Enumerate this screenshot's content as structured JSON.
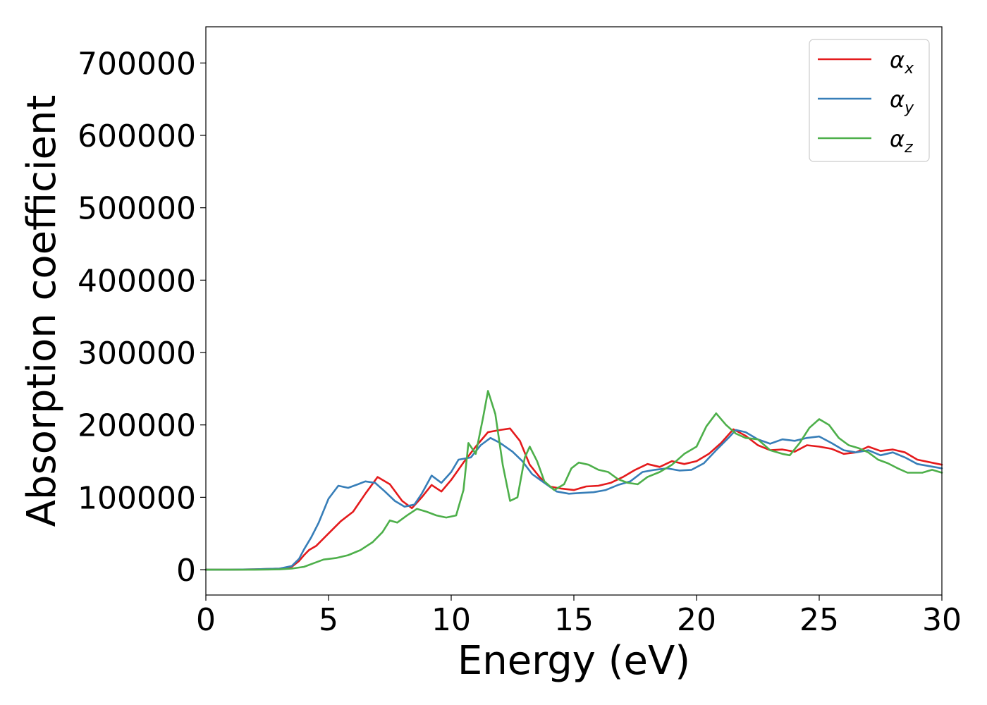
{
  "chart_data": {
    "type": "line",
    "title": "",
    "xlabel": "Energy (eV)",
    "ylabel": "Absorption coefficient",
    "xlim": [
      0,
      30
    ],
    "ylim": [
      -35000,
      750000
    ],
    "xticks": [
      0,
      5,
      10,
      15,
      20,
      25,
      30
    ],
    "yticks": [
      0,
      100000,
      200000,
      300000,
      400000,
      500000,
      600000,
      700000
    ],
    "grid": false,
    "legend_position": "top-right",
    "series": [
      {
        "name": "α",
        "subscript": "x",
        "color": "#e41a1c",
        "points": [
          [
            0,
            0
          ],
          [
            1,
            0
          ],
          [
            2,
            500
          ],
          [
            3,
            1500
          ],
          [
            3.5,
            4000
          ],
          [
            3.8,
            12000
          ],
          [
            4.0,
            20000
          ],
          [
            4.2,
            27000
          ],
          [
            4.5,
            33000
          ],
          [
            5.0,
            50000
          ],
          [
            5.5,
            67000
          ],
          [
            6.0,
            80000
          ],
          [
            6.5,
            105000
          ],
          [
            7.0,
            128000
          ],
          [
            7.5,
            118000
          ],
          [
            8.0,
            95000
          ],
          [
            8.4,
            85000
          ],
          [
            8.8,
            100000
          ],
          [
            9.2,
            117000
          ],
          [
            9.6,
            108000
          ],
          [
            10.0,
            124000
          ],
          [
            10.5,
            148000
          ],
          [
            11.0,
            170000
          ],
          [
            11.5,
            190000
          ],
          [
            12.0,
            193000
          ],
          [
            12.4,
            195000
          ],
          [
            12.8,
            178000
          ],
          [
            13.2,
            145000
          ],
          [
            13.6,
            128000
          ],
          [
            14.0,
            115000
          ],
          [
            14.5,
            112000
          ],
          [
            15.0,
            110000
          ],
          [
            15.5,
            115000
          ],
          [
            16.0,
            116000
          ],
          [
            16.5,
            120000
          ],
          [
            17.0,
            128000
          ],
          [
            17.5,
            138000
          ],
          [
            18.0,
            146000
          ],
          [
            18.5,
            142000
          ],
          [
            19.0,
            150000
          ],
          [
            19.5,
            146000
          ],
          [
            20.0,
            150000
          ],
          [
            20.5,
            160000
          ],
          [
            21.0,
            175000
          ],
          [
            21.5,
            194000
          ],
          [
            22.0,
            185000
          ],
          [
            22.5,
            172000
          ],
          [
            23.0,
            165000
          ],
          [
            23.5,
            166000
          ],
          [
            24.0,
            163000
          ],
          [
            24.5,
            172000
          ],
          [
            25.0,
            170000
          ],
          [
            25.5,
            167000
          ],
          [
            26.0,
            160000
          ],
          [
            26.5,
            162000
          ],
          [
            27.0,
            170000
          ],
          [
            27.5,
            164000
          ],
          [
            28.0,
            166000
          ],
          [
            28.5,
            162000
          ],
          [
            29.0,
            152000
          ],
          [
            30.0,
            145000
          ]
        ]
      },
      {
        "name": "α",
        "subscript": "y",
        "color": "#377eb8",
        "points": [
          [
            0,
            0
          ],
          [
            1,
            0
          ],
          [
            2,
            500
          ],
          [
            3,
            1500
          ],
          [
            3.5,
            5000
          ],
          [
            3.8,
            15000
          ],
          [
            4.0,
            28000
          ],
          [
            4.3,
            45000
          ],
          [
            4.6,
            65000
          ],
          [
            5.0,
            98000
          ],
          [
            5.4,
            116000
          ],
          [
            5.8,
            113000
          ],
          [
            6.2,
            118000
          ],
          [
            6.5,
            122000
          ],
          [
            6.9,
            120000
          ],
          [
            7.3,
            108000
          ],
          [
            7.7,
            95000
          ],
          [
            8.1,
            87000
          ],
          [
            8.5,
            90000
          ],
          [
            8.8,
            105000
          ],
          [
            9.2,
            130000
          ],
          [
            9.6,
            120000
          ],
          [
            10.0,
            135000
          ],
          [
            10.3,
            152000
          ],
          [
            10.8,
            155000
          ],
          [
            11.2,
            172000
          ],
          [
            11.6,
            182000
          ],
          [
            12.0,
            175000
          ],
          [
            12.5,
            163000
          ],
          [
            12.9,
            150000
          ],
          [
            13.3,
            132000
          ],
          [
            13.8,
            120000
          ],
          [
            14.3,
            108000
          ],
          [
            14.8,
            105000
          ],
          [
            15.3,
            106000
          ],
          [
            15.8,
            107000
          ],
          [
            16.3,
            110000
          ],
          [
            16.8,
            117000
          ],
          [
            17.3,
            122000
          ],
          [
            17.8,
            135000
          ],
          [
            18.3,
            138000
          ],
          [
            18.8,
            140000
          ],
          [
            19.3,
            137000
          ],
          [
            19.8,
            138000
          ],
          [
            20.3,
            147000
          ],
          [
            20.8,
            165000
          ],
          [
            21.3,
            182000
          ],
          [
            21.6,
            193000
          ],
          [
            22.0,
            190000
          ],
          [
            22.5,
            180000
          ],
          [
            23.0,
            174000
          ],
          [
            23.5,
            180000
          ],
          [
            24.0,
            178000
          ],
          [
            24.5,
            182000
          ],
          [
            25.0,
            184000
          ],
          [
            25.5,
            175000
          ],
          [
            26.0,
            165000
          ],
          [
            26.5,
            162000
          ],
          [
            27.0,
            165000
          ],
          [
            27.5,
            158000
          ],
          [
            28.0,
            162000
          ],
          [
            28.5,
            155000
          ],
          [
            29.0,
            146000
          ],
          [
            30.0,
            140000
          ]
        ]
      },
      {
        "name": "α",
        "subscript": "z",
        "color": "#4daf4a",
        "points": [
          [
            0,
            0
          ],
          [
            1,
            0
          ],
          [
            2,
            0
          ],
          [
            3,
            500
          ],
          [
            3.5,
            1500
          ],
          [
            4.0,
            4000
          ],
          [
            4.4,
            9000
          ],
          [
            4.8,
            14000
          ],
          [
            5.3,
            16000
          ],
          [
            5.8,
            20000
          ],
          [
            6.3,
            27000
          ],
          [
            6.8,
            38000
          ],
          [
            7.2,
            52000
          ],
          [
            7.5,
            68000
          ],
          [
            7.8,
            65000
          ],
          [
            8.2,
            75000
          ],
          [
            8.6,
            84000
          ],
          [
            9.0,
            80000
          ],
          [
            9.4,
            75000
          ],
          [
            9.8,
            72000
          ],
          [
            10.2,
            75000
          ],
          [
            10.5,
            110000
          ],
          [
            10.7,
            175000
          ],
          [
            11.0,
            160000
          ],
          [
            11.3,
            210000
          ],
          [
            11.5,
            247000
          ],
          [
            11.8,
            215000
          ],
          [
            12.1,
            145000
          ],
          [
            12.4,
            95000
          ],
          [
            12.7,
            100000
          ],
          [
            13.0,
            155000
          ],
          [
            13.2,
            170000
          ],
          [
            13.5,
            150000
          ],
          [
            13.8,
            122000
          ],
          [
            14.2,
            110000
          ],
          [
            14.6,
            118000
          ],
          [
            14.9,
            140000
          ],
          [
            15.2,
            148000
          ],
          [
            15.6,
            145000
          ],
          [
            16.0,
            138000
          ],
          [
            16.4,
            135000
          ],
          [
            16.8,
            125000
          ],
          [
            17.2,
            120000
          ],
          [
            17.6,
            118000
          ],
          [
            18.0,
            128000
          ],
          [
            18.5,
            135000
          ],
          [
            19.0,
            145000
          ],
          [
            19.5,
            160000
          ],
          [
            20.0,
            170000
          ],
          [
            20.4,
            198000
          ],
          [
            20.8,
            216000
          ],
          [
            21.2,
            200000
          ],
          [
            21.6,
            188000
          ],
          [
            22.0,
            182000
          ],
          [
            22.5,
            180000
          ],
          [
            23.0,
            165000
          ],
          [
            23.5,
            160000
          ],
          [
            23.8,
            158000
          ],
          [
            24.2,
            175000
          ],
          [
            24.6,
            196000
          ],
          [
            25.0,
            208000
          ],
          [
            25.4,
            200000
          ],
          [
            25.8,
            182000
          ],
          [
            26.2,
            172000
          ],
          [
            26.6,
            168000
          ],
          [
            27.0,
            162000
          ],
          [
            27.4,
            152000
          ],
          [
            27.8,
            147000
          ],
          [
            28.2,
            140000
          ],
          [
            28.6,
            134000
          ],
          [
            29.2,
            134000
          ],
          [
            29.6,
            138000
          ],
          [
            30.0,
            134000
          ]
        ]
      }
    ]
  }
}
